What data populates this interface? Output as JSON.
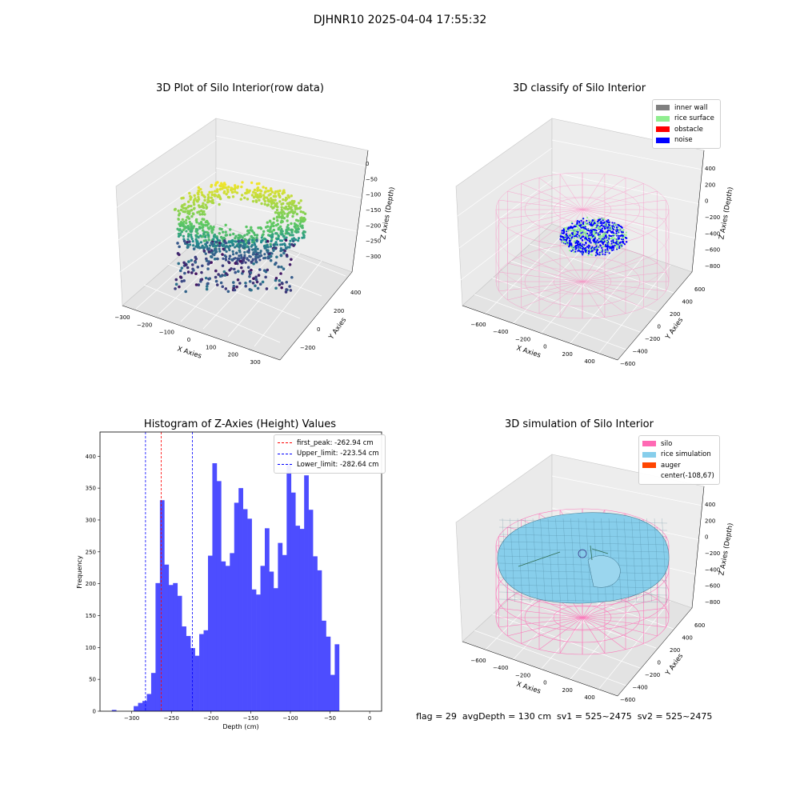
{
  "suptitle": "DJHNR10 2025-04-04 17:55:32",
  "footer": "flag = 29  avgDepth = 130 cm  sv1 = 525~2475  sv2 = 525~2475",
  "colors": {
    "inner_wall": "#808080",
    "rice_surface": "#90ee90",
    "obstacle": "#ff0000",
    "noise": "#0000ff",
    "silo": "#ff69b4",
    "rice_simulation": "#87ceeb",
    "auger": "#ff4500",
    "hist_bar": "#4d4dff"
  },
  "chart_data": [
    {
      "type": "scatter3d",
      "title": "3D Plot of Silo Interior(row data)",
      "xlabel": "X Axies",
      "ylabel": "Y Axies",
      "zlabel": "Z Axies (Depth)",
      "x_ticks": [
        "−300",
        "−200",
        "−100",
        "0",
        "100",
        "200",
        "300"
      ],
      "y_ticks": [
        "−200",
        "0",
        "200",
        "400"
      ],
      "z_ticks": [
        "0",
        "−50",
        "−100",
        "−150",
        "−200",
        "−250",
        "−300"
      ],
      "colormap": "viridis"
    },
    {
      "type": "scatter3d",
      "title": "3D classify of Silo Interior",
      "xlabel": "X Axies",
      "ylabel": "Y Axies",
      "zlabel": "Z Axies (Depth)",
      "x_ticks": [
        "−600",
        "−400",
        "−200",
        "0",
        "200",
        "400"
      ],
      "y_ticks": [
        "−600",
        "−400",
        "−200",
        "0",
        "200",
        "400",
        "600"
      ],
      "z_ticks": [
        "400",
        "200",
        "0",
        "−200",
        "−400",
        "−600",
        "−800"
      ],
      "legend": [
        "inner wall",
        "rice surface",
        "obstacle",
        "noise"
      ]
    },
    {
      "type": "bar",
      "title": "Histogram of Z-Axies (Height) Values",
      "xlabel": "Depth (cm)",
      "ylabel": "Frequency",
      "xlim": [
        -340,
        15
      ],
      "ylim": [
        0,
        438
      ],
      "x_ticks": [
        -300,
        -250,
        -200,
        -150,
        -100,
        -50,
        0
      ],
      "x_tick_labels": [
        "−300",
        "−250",
        "−200",
        "−150",
        "−100",
        "−50",
        "0"
      ],
      "y_ticks": [
        0,
        50,
        100,
        150,
        200,
        250,
        300,
        350,
        400
      ],
      "y_tick_labels": [
        "0",
        "50",
        "100",
        "150",
        "200",
        "250",
        "300",
        "350",
        "400"
      ],
      "bin_start": -330.6,
      "bin_width": 5.51,
      "values": [
        0,
        2,
        0,
        0,
        0,
        0,
        8,
        13,
        16,
        27,
        60,
        201,
        331,
        230,
        198,
        201,
        181,
        133,
        118,
        99,
        87,
        121,
        127,
        244,
        389,
        361,
        235,
        228,
        248,
        327,
        350,
        317,
        302,
        191,
        183,
        228,
        287,
        219,
        193,
        264,
        245,
        386,
        343,
        291,
        286,
        370,
        316,
        243,
        221,
        142,
        117,
        57,
        105
      ],
      "vlines": [
        {
          "x": -262.94,
          "color": "#ff0000",
          "label": "first_peak: -262.94 cm"
        },
        {
          "x": -223.54,
          "color": "#0000ff",
          "label": "Upper_limit: -223.54 cm"
        },
        {
          "x": -282.64,
          "color": "#0000ff",
          "label": "Lower_limit: -282.64 cm"
        }
      ]
    },
    {
      "type": "surface3d",
      "title": "3D simulation of Silo Interior",
      "xlabel": "X Axies",
      "ylabel": "Y Axies",
      "zlabel": "Z Axies (Depth)",
      "x_ticks": [
        "−600",
        "−400",
        "−200",
        "0",
        "200",
        "400"
      ],
      "y_ticks": [
        "−600",
        "−400",
        "−200",
        "0",
        "200",
        "400",
        "600"
      ],
      "z_ticks": [
        "400",
        "200",
        "0",
        "−200",
        "−400",
        "−600",
        "−800"
      ],
      "legend": [
        "silo",
        "rice simulation",
        "auger",
        "center(-108,67)"
      ]
    }
  ]
}
